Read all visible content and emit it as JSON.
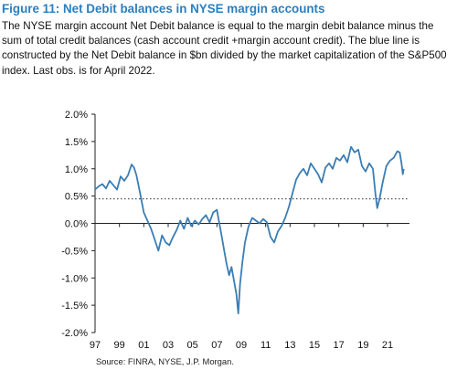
{
  "figure": {
    "title": "Figure 11: Net Debit balances in NYSE margin accounts",
    "description": "The NYSE margin account Net Debit balance is equal to the margin debit balance minus the sum of total credit balances (cash account credit +margin account credit). The blue line is constructed by the Net Debit balance in $bn divided by the market capitalization of the S&P500 index. Last obs. is for April 2022.",
    "source": "Source: FINRA, NYSE, J.P. Morgan."
  },
  "colors": {
    "title": "#2a7fc0",
    "line": "#3b7db5",
    "reference": "#555555",
    "axis": "#222222"
  },
  "chart_data": {
    "type": "line",
    "title": "",
    "xlabel": "",
    "ylabel": "",
    "xlim": [
      1997.0,
      2022.8
    ],
    "ylim": [
      -2.0,
      2.0
    ],
    "y_ticks": [
      2.0,
      1.5,
      1.0,
      0.5,
      0.0,
      -0.5,
      -1.0,
      -1.5,
      -2.0
    ],
    "y_tick_labels": [
      "2.0%",
      "1.5%",
      "1.0%",
      "0.5%",
      "0.0%",
      "-0.5%",
      "-1.0%",
      "-1.5%",
      "-2.0%"
    ],
    "x_ticks": [
      1997,
      1999,
      2001,
      2003,
      2005,
      2007,
      2009,
      2011,
      2013,
      2015,
      2017,
      2019,
      2021
    ],
    "x_tick_labels": [
      "97",
      "99",
      "01",
      "03",
      "05",
      "07",
      "09",
      "11",
      "13",
      "15",
      "17",
      "19",
      "21"
    ],
    "grid": false,
    "reference_line": {
      "value": 0.45,
      "style": "dotted"
    },
    "series": [
      {
        "values": [
          [
            1997.0,
            0.62
          ],
          [
            1997.3,
            0.68
          ],
          [
            1997.6,
            0.72
          ],
          [
            1997.9,
            0.64
          ],
          [
            1998.2,
            0.78
          ],
          [
            1998.5,
            0.7
          ],
          [
            1998.8,
            0.62
          ],
          [
            1999.1,
            0.86
          ],
          [
            1999.4,
            0.78
          ],
          [
            1999.7,
            0.88
          ],
          [
            2000.0,
            1.08
          ],
          [
            2000.2,
            1.02
          ],
          [
            2000.4,
            0.88
          ],
          [
            2000.7,
            0.55
          ],
          [
            2001.0,
            0.2
          ],
          [
            2001.3,
            0.05
          ],
          [
            2001.6,
            -0.1
          ],
          [
            2001.9,
            -0.3
          ],
          [
            2002.2,
            -0.5
          ],
          [
            2002.5,
            -0.22
          ],
          [
            2002.8,
            -0.35
          ],
          [
            2003.1,
            -0.4
          ],
          [
            2003.4,
            -0.25
          ],
          [
            2003.7,
            -0.12
          ],
          [
            2004.0,
            0.05
          ],
          [
            2004.3,
            -0.1
          ],
          [
            2004.6,
            0.1
          ],
          [
            2004.9,
            -0.05
          ],
          [
            2005.2,
            0.05
          ],
          [
            2005.5,
            -0.02
          ],
          [
            2005.8,
            0.08
          ],
          [
            2006.1,
            0.15
          ],
          [
            2006.4,
            0.02
          ],
          [
            2006.7,
            0.2
          ],
          [
            2007.0,
            0.25
          ],
          [
            2007.2,
            0.0
          ],
          [
            2007.4,
            -0.25
          ],
          [
            2007.6,
            -0.5
          ],
          [
            2007.8,
            -0.75
          ],
          [
            2008.0,
            -0.95
          ],
          [
            2008.2,
            -0.8
          ],
          [
            2008.4,
            -1.05
          ],
          [
            2008.6,
            -1.3
          ],
          [
            2008.75,
            -1.65
          ],
          [
            2008.9,
            -1.1
          ],
          [
            2009.1,
            -0.7
          ],
          [
            2009.3,
            -0.35
          ],
          [
            2009.6,
            -0.05
          ],
          [
            2009.9,
            0.1
          ],
          [
            2010.2,
            0.05
          ],
          [
            2010.5,
            0.0
          ],
          [
            2010.8,
            0.08
          ],
          [
            2011.1,
            0.02
          ],
          [
            2011.4,
            -0.25
          ],
          [
            2011.7,
            -0.35
          ],
          [
            2012.0,
            -0.15
          ],
          [
            2012.3,
            -0.05
          ],
          [
            2012.6,
            0.1
          ],
          [
            2012.9,
            0.3
          ],
          [
            2013.2,
            0.55
          ],
          [
            2013.5,
            0.8
          ],
          [
            2013.8,
            0.92
          ],
          [
            2014.1,
            1.0
          ],
          [
            2014.4,
            0.88
          ],
          [
            2014.7,
            1.1
          ],
          [
            2015.0,
            1.0
          ],
          [
            2015.3,
            0.9
          ],
          [
            2015.6,
            0.75
          ],
          [
            2015.9,
            1.02
          ],
          [
            2016.2,
            1.1
          ],
          [
            2016.5,
            1.0
          ],
          [
            2016.8,
            1.2
          ],
          [
            2017.1,
            1.15
          ],
          [
            2017.4,
            1.25
          ],
          [
            2017.7,
            1.12
          ],
          [
            2018.0,
            1.4
          ],
          [
            2018.3,
            1.3
          ],
          [
            2018.6,
            1.35
          ],
          [
            2018.9,
            1.05
          ],
          [
            2019.2,
            0.95
          ],
          [
            2019.5,
            1.1
          ],
          [
            2019.8,
            1.0
          ],
          [
            2020.0,
            0.55
          ],
          [
            2020.15,
            0.28
          ],
          [
            2020.35,
            0.45
          ],
          [
            2020.6,
            0.75
          ],
          [
            2020.9,
            1.05
          ],
          [
            2021.2,
            1.15
          ],
          [
            2021.5,
            1.2
          ],
          [
            2021.8,
            1.32
          ],
          [
            2022.0,
            1.3
          ],
          [
            2022.15,
            1.1
          ],
          [
            2022.25,
            0.9
          ],
          [
            2022.33,
            1.0
          ]
        ]
      }
    ]
  }
}
